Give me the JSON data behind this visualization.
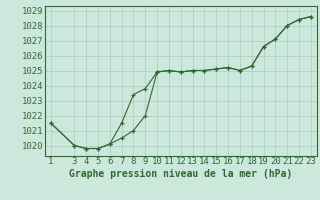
{
  "title": "Graphe pression niveau de la mer (hPa)",
  "x_labels": [
    1,
    3,
    4,
    5,
    6,
    7,
    8,
    9,
    10,
    11,
    12,
    13,
    14,
    15,
    16,
    17,
    18,
    19,
    20,
    21,
    22,
    23
  ],
  "series1_x": [
    1,
    3,
    4,
    5,
    6,
    7,
    8,
    9,
    10,
    11,
    12,
    13,
    14,
    15,
    16,
    17,
    18,
    19,
    20,
    21,
    22,
    23
  ],
  "series1_y": [
    1021.5,
    1020.0,
    1019.8,
    1019.8,
    1020.1,
    1020.5,
    1021.0,
    1022.0,
    1024.9,
    1025.0,
    1024.9,
    1025.0,
    1025.0,
    1025.1,
    1025.2,
    1025.0,
    1025.3,
    1026.6,
    1027.1,
    1028.0,
    1028.4,
    1028.6
  ],
  "series2_x": [
    1,
    3,
    4,
    5,
    6,
    7,
    8,
    9,
    10,
    11,
    12,
    13,
    14,
    15,
    16,
    17,
    18,
    19,
    20,
    21,
    22,
    23
  ],
  "series2_y": [
    1021.5,
    1020.0,
    1019.8,
    1019.8,
    1020.1,
    1021.5,
    1023.4,
    1023.8,
    1024.9,
    1025.0,
    1024.9,
    1025.0,
    1025.0,
    1025.1,
    1025.2,
    1025.0,
    1025.3,
    1026.6,
    1027.1,
    1028.0,
    1028.4,
    1028.6
  ],
  "line_color": "#2d6a2d",
  "marker": "+",
  "bg_color": "#cce8dc",
  "grid_color": "#aaccbc",
  "ylim": [
    1019.3,
    1029.3
  ],
  "yticks": [
    1020,
    1021,
    1022,
    1023,
    1024,
    1025,
    1026,
    1027,
    1028,
    1029
  ],
  "axis_label_fontsize": 6.5,
  "title_fontsize": 7.0,
  "title_fontweight": "bold"
}
